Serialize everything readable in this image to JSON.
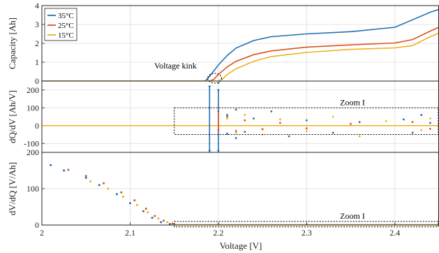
{
  "chart_data": [
    {
      "type": "line",
      "xlim": [
        2.0,
        2.45
      ],
      "ylim": [
        0,
        4
      ],
      "ylabel": "Capacity [Ah]",
      "y_ticks": [
        "0",
        "1",
        "2",
        "3",
        "4"
      ],
      "grid": true,
      "legend_placement": "top-left",
      "series": [
        {
          "name": "35°C",
          "color": "#1f6fb0",
          "x": [
            2.0,
            2.185,
            2.19,
            2.195,
            2.2,
            2.21,
            2.22,
            2.24,
            2.26,
            2.3,
            2.35,
            2.4,
            2.42,
            2.44,
            2.45
          ],
          "y": [
            0,
            0,
            0.25,
            0.55,
            0.85,
            1.35,
            1.75,
            2.15,
            2.35,
            2.5,
            2.62,
            2.85,
            3.25,
            3.65,
            3.8
          ]
        },
        {
          "name": "25°C",
          "color": "#d9541e",
          "x": [
            2.0,
            2.19,
            2.195,
            2.2,
            2.21,
            2.22,
            2.24,
            2.26,
            2.3,
            2.35,
            2.4,
            2.42,
            2.44,
            2.45
          ],
          "y": [
            0,
            0,
            0.1,
            0.35,
            0.75,
            1.05,
            1.4,
            1.6,
            1.8,
            1.92,
            2.02,
            2.2,
            2.65,
            2.85
          ]
        },
        {
          "name": "15°C",
          "color": "#edb120",
          "x": [
            2.0,
            2.2,
            2.205,
            2.21,
            2.22,
            2.24,
            2.26,
            2.3,
            2.35,
            2.4,
            2.42,
            2.44,
            2.45
          ],
          "y": [
            0,
            0,
            0.12,
            0.35,
            0.65,
            1.05,
            1.3,
            1.52,
            1.68,
            1.76,
            1.88,
            2.35,
            2.55
          ]
        }
      ],
      "annotations": [
        {
          "text": "Voltage kink",
          "x": 2.195,
          "y": 0.3
        }
      ]
    },
    {
      "type": "scatter",
      "xlim": [
        2.0,
        2.45
      ],
      "ylim": [
        -150,
        250
      ],
      "ylabel": "dQ/dV [Ah/V]",
      "y_ticks": [
        "-100",
        "0",
        "100",
        "200"
      ],
      "grid": true,
      "zoom_box": {
        "label": "Zoom I",
        "x": [
          2.15,
          2.45
        ],
        "y": [
          -50,
          100
        ]
      },
      "series": [
        {
          "name": "35°C",
          "color": "#1f6fb0",
          "points": [
            [
              2.19,
              220
            ],
            [
              2.19,
              -140
            ],
            [
              2.2,
              200
            ],
            [
              2.2,
              -140
            ],
            [
              2.21,
              60
            ],
            [
              2.21,
              -45
            ],
            [
              2.22,
              90
            ],
            [
              2.23,
              -35
            ],
            [
              2.24,
              40
            ],
            [
              2.25,
              -20
            ],
            [
              2.26,
              80
            ],
            [
              2.28,
              -60
            ],
            [
              2.3,
              30
            ],
            [
              2.33,
              -40
            ],
            [
              2.36,
              20
            ],
            [
              2.41,
              35
            ],
            [
              2.42,
              -40
            ],
            [
              2.43,
              60
            ],
            [
              2.44,
              15
            ],
            [
              2.2,
              240
            ],
            [
              2.22,
              -70
            ]
          ]
        },
        {
          "name": "25°C",
          "color": "#d9541e",
          "points": [
            [
              2.2,
              80
            ],
            [
              2.2,
              -25
            ],
            [
              2.21,
              50
            ],
            [
              2.22,
              -30
            ],
            [
              2.23,
              30
            ],
            [
              2.25,
              -20
            ],
            [
              2.27,
              15
            ],
            [
              2.3,
              -15
            ],
            [
              2.35,
              10
            ],
            [
              2.42,
              20
            ],
            [
              2.44,
              -18
            ]
          ]
        },
        {
          "name": "15°C",
          "color": "#edb120",
          "points": [
            [
              2.21,
              40
            ],
            [
              2.22,
              -40
            ],
            [
              2.23,
              60
            ],
            [
              2.25,
              -50
            ],
            [
              2.27,
              35
            ],
            [
              2.3,
              -30
            ],
            [
              2.33,
              50
            ],
            [
              2.36,
              -60
            ],
            [
              2.39,
              25
            ],
            [
              2.43,
              -25
            ],
            [
              2.44,
              40
            ]
          ]
        }
      ]
    },
    {
      "type": "scatter",
      "xlim": [
        2.0,
        2.45
      ],
      "ylim": [
        0,
        200
      ],
      "xlabel": "Voltage [V]",
      "ylabel": "dV/dQ [V/Ah]",
      "x_ticks": [
        "2",
        "2.1",
        "2.2",
        "2.3",
        "2.4"
      ],
      "y_ticks": [
        "0",
        "100",
        "200"
      ],
      "grid": true,
      "zoom_box": {
        "label": "Zoom I",
        "x": [
          2.15,
          2.45
        ],
        "y": [
          -5,
          10
        ]
      },
      "series": [
        {
          "name": "35°C",
          "color": "#1f6fb0",
          "x": [
            2.01,
            2.025,
            2.05,
            2.065,
            2.085,
            2.1,
            2.115,
            2.125,
            2.135,
            2.145,
            2.2,
            2.3,
            2.4
          ],
          "y": [
            165,
            150,
            130,
            110,
            85,
            60,
            38,
            20,
            8,
            3,
            2,
            1,
            1
          ]
        },
        {
          "name": "25°C",
          "color": "#d9541e",
          "x": [
            2.03,
            2.05,
            2.07,
            2.09,
            2.105,
            2.118,
            2.128,
            2.138,
            2.148,
            2.2,
            2.3,
            2.4
          ],
          "y": [
            152,
            135,
            115,
            90,
            68,
            45,
            25,
            12,
            4,
            2,
            1,
            1
          ]
        },
        {
          "name": "15°C",
          "color": "#edb120",
          "x": [
            2.055,
            2.075,
            2.092,
            2.108,
            2.12,
            2.132,
            2.142,
            2.15,
            2.2,
            2.3,
            2.4
          ],
          "y": [
            120,
            100,
            78,
            55,
            35,
            18,
            8,
            3,
            2,
            1,
            1
          ]
        }
      ]
    }
  ]
}
